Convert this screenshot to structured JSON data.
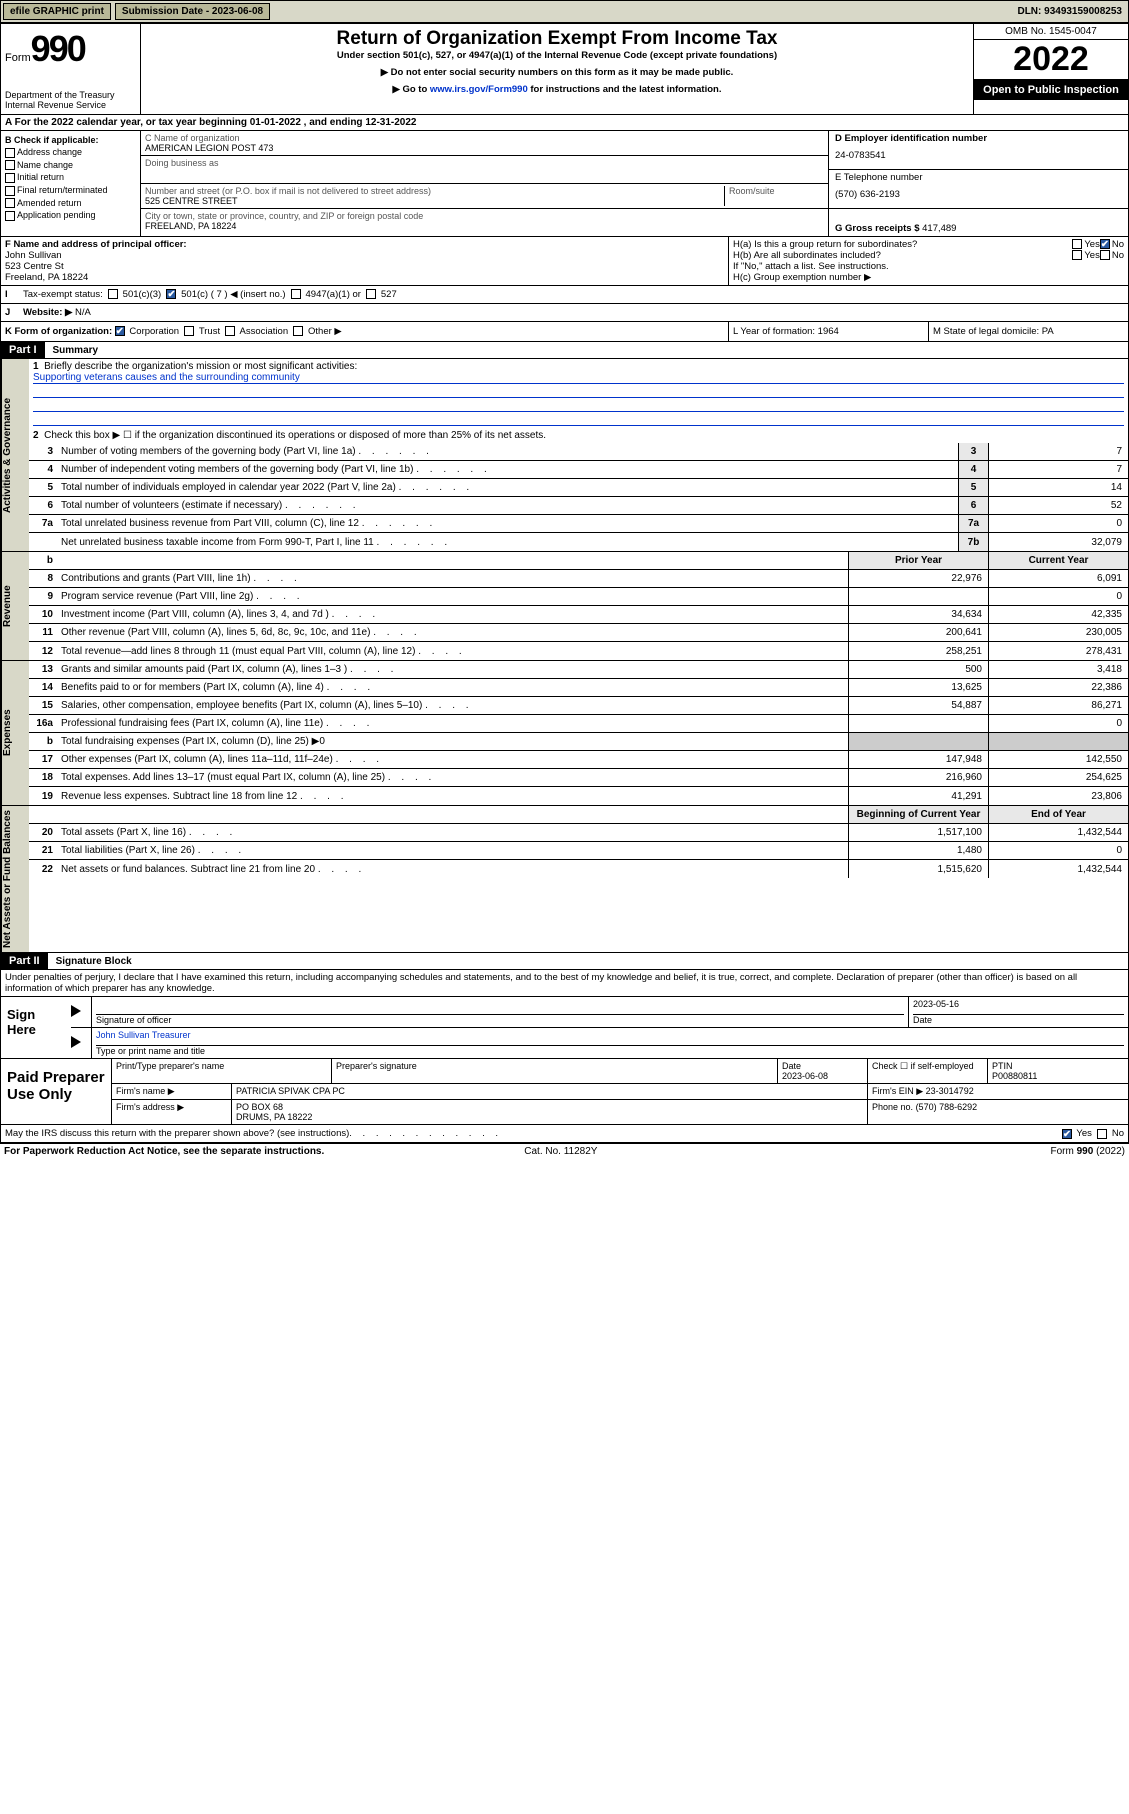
{
  "top": {
    "efile": "efile GRAPHIC print",
    "subLabel": "Submission Date - 2023-06-08",
    "dln": "DLN: 93493159008253"
  },
  "header": {
    "formWord": "Form",
    "formNum": "990",
    "dept": "Department of the Treasury",
    "irs": "Internal Revenue Service",
    "title": "Return of Organization Exempt From Income Tax",
    "sub1": "Under section 501(c), 527, or 4947(a)(1) of the Internal Revenue Code (except private foundations)",
    "sub2": "▶ Do not enter social security numbers on this form as it may be made public.",
    "sub3a": "▶ Go to ",
    "sub3link": "www.irs.gov/Form990",
    "sub3b": " for instructions and the latest information.",
    "omb": "OMB No. 1545-0047",
    "year": "2022",
    "inspect": "Open to Public Inspection"
  },
  "rowA": "A For the 2022 calendar year, or tax year beginning 01-01-2022    , and ending 12-31-2022",
  "colB": {
    "hdr": "B Check if applicable:",
    "items": [
      "Address change",
      "Name change",
      "Initial return",
      "Final return/terminated",
      "Amended return",
      "Application pending"
    ]
  },
  "colC": {
    "nameLabel": "C Name of organization",
    "name": "AMERICAN LEGION POST 473",
    "dba": "Doing business as",
    "addrLabel": "Number and street (or P.O. box if mail is not delivered to street address)",
    "room": "Room/suite",
    "addr": "525 CENTRE STREET",
    "cityLabel": "City or town, state or province, country, and ZIP or foreign postal code",
    "city": "FREELAND, PA  18224"
  },
  "colD": {
    "einLabel": "D Employer identification number",
    "ein": "24-0783541",
    "telLabel": "E Telephone number",
    "tel": "(570) 636-2193",
    "grossLabel": "G Gross receipts $ ",
    "gross": "417,489"
  },
  "rowF": {
    "label": "F  Name and address of principal officer:",
    "name": "John Sullivan",
    "addr1": "523 Centre St",
    "addr2": "Freeland, PA  18224"
  },
  "rowH": {
    "a": "H(a)  Is this a group return for subordinates?",
    "b": "H(b)  Are all subordinates included?",
    "bnote": "If \"No,\" attach a list. See instructions.",
    "c": "H(c)  Group exemption number ▶"
  },
  "rowI": {
    "label": "Tax-exempt status:",
    "o1": "501(c)(3)",
    "o2": "501(c) ( 7 ) ◀ (insert no.)",
    "o3": "4947(a)(1) or",
    "o4": "527"
  },
  "rowJ": {
    "label": "Website: ▶",
    "val": "N/A"
  },
  "rowK": {
    "label": "K Form of organization:",
    "opts": [
      "Corporation",
      "Trust",
      "Association",
      "Other ▶"
    ]
  },
  "rowL": "L Year of formation: 1964",
  "rowM": "M State of legal domicile: PA",
  "part1": {
    "hdr": "Part I",
    "title": "Summary"
  },
  "q1": {
    "label": "Briefly describe the organization's mission or most significant activities:",
    "text": "Supporting veterans causes and the surrounding community"
  },
  "q2": "Check this box ▶ ☐  if the organization discontinued its operations or disposed of more than 25% of its net assets.",
  "gov": [
    {
      "n": "3",
      "t": "Number of voting members of the governing body (Part VI, line 1a)",
      "b": "3",
      "v": "7"
    },
    {
      "n": "4",
      "t": "Number of independent voting members of the governing body (Part VI, line 1b)",
      "b": "4",
      "v": "7"
    },
    {
      "n": "5",
      "t": "Total number of individuals employed in calendar year 2022 (Part V, line 2a)",
      "b": "5",
      "v": "14"
    },
    {
      "n": "6",
      "t": "Total number of volunteers (estimate if necessary)",
      "b": "6",
      "v": "52"
    },
    {
      "n": "7a",
      "t": "Total unrelated business revenue from Part VIII, column (C), line 12",
      "b": "7a",
      "v": "0"
    },
    {
      "n": "",
      "t": "Net unrelated business taxable income from Form 990-T, Part I, line 11",
      "b": "7b",
      "v": "32,079"
    }
  ],
  "colHdr": {
    "py": "Prior Year",
    "cy": "Current Year"
  },
  "rev": [
    {
      "n": "8",
      "t": "Contributions and grants (Part VIII, line 1h)",
      "p": "22,976",
      "c": "6,091"
    },
    {
      "n": "9",
      "t": "Program service revenue (Part VIII, line 2g)",
      "p": "",
      "c": "0"
    },
    {
      "n": "10",
      "t": "Investment income (Part VIII, column (A), lines 3, 4, and 7d )",
      "p": "34,634",
      "c": "42,335"
    },
    {
      "n": "11",
      "t": "Other revenue (Part VIII, column (A), lines 5, 6d, 8c, 9c, 10c, and 11e)",
      "p": "200,641",
      "c": "230,005"
    },
    {
      "n": "12",
      "t": "Total revenue—add lines 8 through 11 (must equal Part VIII, column (A), line 12)",
      "p": "258,251",
      "c": "278,431"
    }
  ],
  "exp": [
    {
      "n": "13",
      "t": "Grants and similar amounts paid (Part IX, column (A), lines 1–3 )",
      "p": "500",
      "c": "3,418"
    },
    {
      "n": "14",
      "t": "Benefits paid to or for members (Part IX, column (A), line 4)",
      "p": "13,625",
      "c": "22,386"
    },
    {
      "n": "15",
      "t": "Salaries, other compensation, employee benefits (Part IX, column (A), lines 5–10)",
      "p": "54,887",
      "c": "86,271"
    },
    {
      "n": "16a",
      "t": "Professional fundraising fees (Part IX, column (A), line 11e)",
      "p": "",
      "c": "0"
    },
    {
      "n": "b",
      "t": "Total fundraising expenses (Part IX, column (D), line 25) ▶0",
      "p": null,
      "c": null
    },
    {
      "n": "17",
      "t": "Other expenses (Part IX, column (A), lines 11a–11d, 11f–24e)",
      "p": "147,948",
      "c": "142,550"
    },
    {
      "n": "18",
      "t": "Total expenses. Add lines 13–17 (must equal Part IX, column (A), line 25)",
      "p": "216,960",
      "c": "254,625"
    },
    {
      "n": "19",
      "t": "Revenue less expenses. Subtract line 18 from line 12",
      "p": "41,291",
      "c": "23,806"
    }
  ],
  "netHdr": {
    "b": "Beginning of Current Year",
    "e": "End of Year"
  },
  "net": [
    {
      "n": "20",
      "t": "Total assets (Part X, line 16)",
      "p": "1,517,100",
      "c": "1,432,544"
    },
    {
      "n": "21",
      "t": "Total liabilities (Part X, line 26)",
      "p": "1,480",
      "c": "0"
    },
    {
      "n": "22",
      "t": "Net assets or fund balances. Subtract line 21 from line 20",
      "p": "1,515,620",
      "c": "1,432,544"
    }
  ],
  "part2": {
    "hdr": "Part II",
    "title": "Signature Block"
  },
  "sigText": "Under penalties of perjury, I declare that I have examined this return, including accompanying schedules and statements, and to the best of my knowledge and belief, it is true, correct, and complete. Declaration of preparer (other than officer) is based on all information of which preparer has any knowledge.",
  "sign": {
    "here": "Sign Here",
    "sigOf": "Signature of officer",
    "date": "2023-05-16",
    "dateL": "Date",
    "name": "John Sullivan  Treasurer",
    "typeL": "Type or print name and title"
  },
  "prep": {
    "label": "Paid Preparer Use Only",
    "c1": "Print/Type preparer's name",
    "c2": "Preparer's signature",
    "c3": "Date",
    "c3v": "2023-06-08",
    "c4": "Check ☐ if self-employed",
    "c5": "PTIN",
    "c5v": "P00880811",
    "firmL": "Firm's name     ▶",
    "firm": "PATRICIA SPIVAK CPA PC",
    "einL": "Firm's EIN ▶",
    "ein": "23-3014792",
    "addrL": "Firm's address ▶",
    "addr1": "PO BOX 68",
    "addr2": "DRUMS, PA  18222",
    "phL": "Phone no.",
    "ph": "(570) 788-6292"
  },
  "discuss": "May the IRS discuss this return with the preparer shown above? (see instructions)",
  "footer": {
    "l": "For Paperwork Reduction Act Notice, see the separate instructions.",
    "m": "Cat. No. 11282Y",
    "r": "Form 990 (2022)"
  },
  "sideLabels": {
    "gov": "Activities & Governance",
    "rev": "Revenue",
    "exp": "Expenses",
    "net": "Net Assets or Fund Balances"
  },
  "yesno": {
    "yes": "Yes",
    "no": "No"
  }
}
